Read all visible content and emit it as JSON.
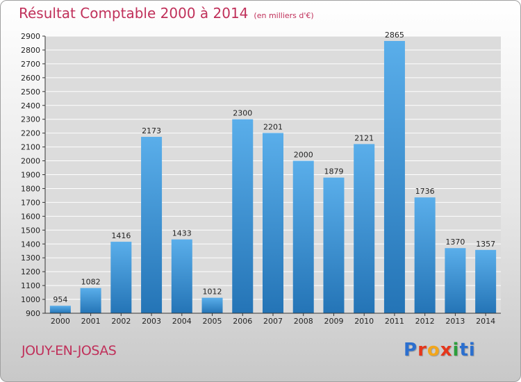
{
  "header": {
    "title": "Résultat Comptable 2000 à 2014",
    "subtitle": "(en milliers d'€)"
  },
  "location": "JOUY-EN-JOSAS",
  "logo": {
    "text": "Proxiti"
  },
  "colors": {
    "title": "#c0305a",
    "bar_light": "#5aaeea",
    "bar_dark": "#2474b6",
    "grid": "#ffffff",
    "axis": "#333333"
  },
  "chart_data": {
    "type": "bar",
    "title": "Résultat Comptable 2000 à 2014",
    "subtitle": "(en milliers d'€)",
    "xlabel": "",
    "ylabel": "",
    "categories": [
      "2000",
      "2001",
      "2002",
      "2003",
      "2004",
      "2005",
      "2006",
      "2007",
      "2008",
      "2009",
      "2010",
      "2011",
      "2012",
      "2013",
      "2014"
    ],
    "values": [
      954,
      1082,
      1416,
      2173,
      1433,
      1012,
      2300,
      2201,
      2000,
      1879,
      2121,
      2865,
      1736,
      1370,
      1357
    ],
    "ylim": [
      900,
      2900
    ],
    "yticks": [
      900,
      1000,
      1100,
      1200,
      1300,
      1400,
      1500,
      1600,
      1700,
      1800,
      1900,
      2000,
      2100,
      2200,
      2300,
      2400,
      2500,
      2600,
      2700,
      2800,
      2900
    ],
    "grid": true,
    "legend": "none"
  }
}
